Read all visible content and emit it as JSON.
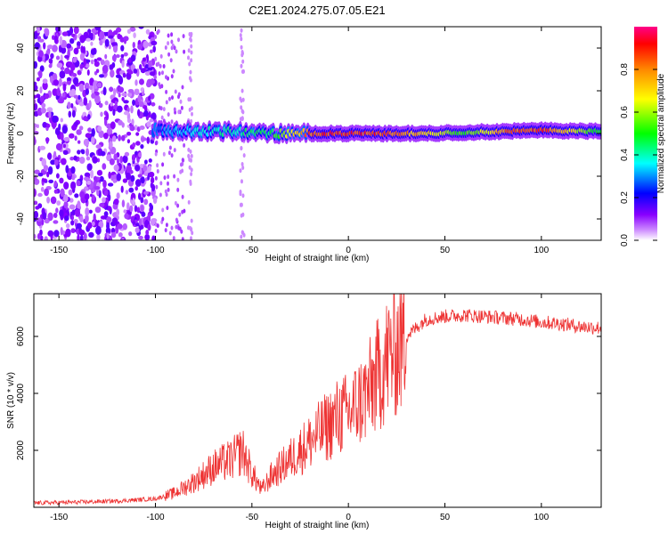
{
  "figure": {
    "title": "C2E1.2024.275.07.05.E21"
  },
  "chart_data": [
    {
      "type": "heatmap",
      "title": "C2E1.2024.275.07.05.E21",
      "xlabel": "Height of straight line (km)",
      "ylabel": "Frequency (Hz)",
      "xlim": [
        -163,
        131
      ],
      "ylim": [
        -50,
        50
      ],
      "x_ticks": [
        -150,
        -100,
        -50,
        0,
        50,
        100
      ],
      "y_ticks": [
        -40,
        -20,
        0,
        20,
        40
      ],
      "grid": false,
      "colorbar": {
        "label": "Normalized spectral amplitude",
        "range": [
          0,
          1
        ],
        "ticks": [
          0.0,
          0.2,
          0.4,
          0.6,
          0.8
        ],
        "colors": [
          "#ffffff",
          "#cc88ff",
          "#8800ff",
          "#0000ff",
          "#00ffff",
          "#00ff00",
          "#ffff00",
          "#ff8800",
          "#ff0000",
          "#ff0088"
        ]
      },
      "series": [
        {
          "x": [
            -100,
            -80,
            -60,
            -40,
            -20,
            0,
            20,
            40,
            60,
            80,
            100,
            130
          ],
          "y": [
            1.5,
            1,
            1,
            0,
            0,
            0,
            0,
            0,
            0.5,
            1,
            1.5,
            1
          ],
          "values": [
            0.3,
            0.4,
            0.45,
            0.5,
            0.9,
            0.95,
            0.9,
            0.75,
            0.55,
            0.85,
            0.95,
            0.5
          ]
        }
      ]
    },
    {
      "type": "line",
      "xlabel": "Height of straight line (km)",
      "ylabel": "SNR (10 * v/v)",
      "xlim": [
        -163,
        131
      ],
      "ylim": [
        0,
        7500
      ],
      "x_ticks": [
        -150,
        -100,
        -50,
        0,
        50,
        100
      ],
      "y_ticks": [
        2000,
        4000,
        6000
      ],
      "grid": false,
      "series": [
        {
          "color": "#ee3333",
          "x": [
            -163,
            -140,
            -120,
            -100,
            -90,
            -80,
            -70,
            -60,
            -55,
            -50,
            -45,
            -40,
            -30,
            -20,
            -10,
            -5,
            0,
            10,
            20,
            30,
            40,
            50,
            60,
            70,
            80,
            90,
            100,
            110,
            120,
            131
          ],
          "y": [
            150,
            180,
            220,
            300,
            500,
            900,
            1400,
            1700,
            2000,
            1200,
            600,
            1100,
            1700,
            2300,
            2900,
            3200,
            3300,
            4000,
            5200,
            6000,
            6600,
            6700,
            6750,
            6700,
            6650,
            6600,
            6500,
            6450,
            6350,
            6300
          ]
        }
      ]
    }
  ]
}
